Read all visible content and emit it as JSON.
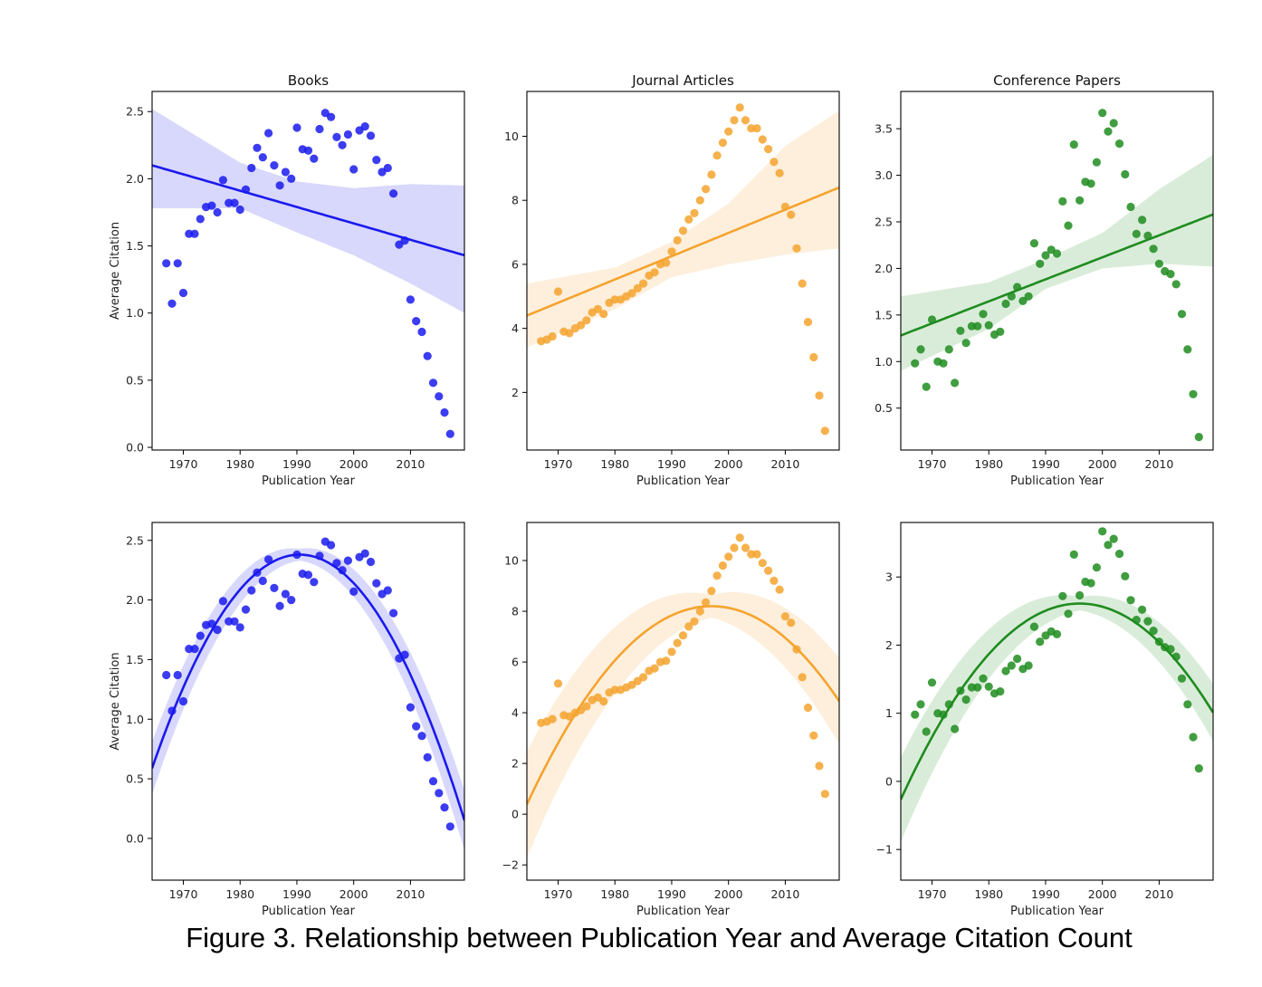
{
  "caption": "Figure 3. Relationship between Publication Year and Average Citation Count",
  "colors": {
    "books": "#1a1aee",
    "journal": "#f5a32e",
    "conference": "#1f8c1f"
  },
  "chart_data": [
    {
      "type": "scatter",
      "row": 1,
      "fit": "linear",
      "title": "Books",
      "xlabel": "Publication Year",
      "ylabel": "Average Citation",
      "xlim": [
        1964.5,
        2019.5
      ],
      "ylim": [
        -0.02,
        2.65
      ],
      "xticks": [
        1970,
        1980,
        1990,
        2000,
        2010
      ],
      "yticks": [
        0.0,
        0.5,
        1.0,
        1.5,
        2.0,
        2.5
      ],
      "ytick_labels": [
        "0.0",
        "0.5",
        "1.0",
        "1.5",
        "2.0",
        "2.5"
      ],
      "color": "#1a1aee",
      "x": [
        1967,
        1968,
        1969,
        1970,
        1971,
        1972,
        1973,
        1974,
        1975,
        1976,
        1977,
        1978,
        1979,
        1980,
        1981,
        1982,
        1983,
        1984,
        1985,
        1986,
        1987,
        1988,
        1989,
        1990,
        1991,
        1992,
        1993,
        1994,
        1995,
        1996,
        1997,
        1998,
        1999,
        2000,
        2001,
        2002,
        2003,
        2004,
        2005,
        2006,
        2007,
        2008,
        2009,
        2010,
        2011,
        2012,
        2013,
        2014,
        2015,
        2016,
        2017
      ],
      "y": [
        1.37,
        1.07,
        1.37,
        1.15,
        1.59,
        1.59,
        1.7,
        1.79,
        1.8,
        1.75,
        1.99,
        1.82,
        1.82,
        1.77,
        1.92,
        2.08,
        2.23,
        2.16,
        2.34,
        2.1,
        1.95,
        2.05,
        2.0,
        2.38,
        2.22,
        2.21,
        2.15,
        2.37,
        2.49,
        2.46,
        2.31,
        2.25,
        2.33,
        2.07,
        2.36,
        2.39,
        2.32,
        2.14,
        2.05,
        2.08,
        1.89,
        1.51,
        1.54,
        1.1,
        0.94,
        0.86,
        0.68,
        0.48,
        0.38,
        0.26,
        0.1
      ],
      "fit_line": {
        "x": [
          1964.5,
          2019.5
        ],
        "y": [
          2.1,
          1.43
        ]
      },
      "ci_band": {
        "x": [
          1964.5,
          1980,
          1990,
          2000,
          2010,
          2019.5
        ],
        "upper": [
          2.52,
          2.12,
          1.98,
          1.93,
          1.96,
          1.95
        ],
        "lower": [
          1.78,
          1.78,
          1.6,
          1.43,
          1.22,
          1.0
        ]
      }
    },
    {
      "type": "scatter",
      "row": 1,
      "fit": "linear",
      "title": "Journal Articles",
      "xlabel": "Publication Year",
      "ylabel": "",
      "xlim": [
        1964.5,
        2019.5
      ],
      "ylim": [
        0.2,
        11.4
      ],
      "xticks": [
        1970,
        1980,
        1990,
        2000,
        2010
      ],
      "yticks": [
        2,
        4,
        6,
        8,
        10
      ],
      "ytick_labels": [
        "2",
        "4",
        "6",
        "8",
        "10"
      ],
      "color": "#f5a32e",
      "x": [
        1967,
        1968,
        1969,
        1970,
        1971,
        1972,
        1973,
        1974,
        1975,
        1976,
        1977,
        1978,
        1979,
        1980,
        1981,
        1982,
        1983,
        1984,
        1985,
        1986,
        1987,
        1988,
        1989,
        1990,
        1991,
        1992,
        1993,
        1994,
        1995,
        1996,
        1997,
        1998,
        1999,
        2000,
        2001,
        2002,
        2003,
        2004,
        2005,
        2006,
        2007,
        2008,
        2009,
        2010,
        2011,
        2012,
        2013,
        2014,
        2015,
        2016,
        2017
      ],
      "y": [
        3.6,
        3.65,
        3.75,
        5.15,
        3.9,
        3.85,
        4.0,
        4.1,
        4.25,
        4.5,
        4.6,
        4.45,
        4.8,
        4.9,
        4.9,
        5.0,
        5.1,
        5.25,
        5.4,
        5.65,
        5.75,
        6.0,
        6.05,
        6.4,
        6.75,
        7.05,
        7.4,
        7.6,
        8.0,
        8.35,
        8.8,
        9.4,
        9.8,
        10.15,
        10.5,
        10.9,
        10.5,
        10.25,
        10.25,
        9.9,
        9.6,
        9.2,
        8.85,
        7.8,
        7.55,
        6.5,
        5.4,
        4.2,
        3.1,
        1.9,
        0.8
      ],
      "fit_line": {
        "x": [
          1964.5,
          2019.5
        ],
        "y": [
          4.4,
          8.4
        ]
      },
      "ci_band": {
        "x": [
          1964.5,
          1980,
          1990,
          2000,
          2010,
          2019.5
        ],
        "upper": [
          5.4,
          5.9,
          6.7,
          7.9,
          9.7,
          10.8
        ],
        "lower": [
          3.4,
          4.6,
          5.6,
          6.0,
          6.3,
          6.5
        ]
      }
    },
    {
      "type": "scatter",
      "row": 1,
      "fit": "linear",
      "title": "Conference Papers",
      "xlabel": "Publication Year",
      "ylabel": "",
      "xlim": [
        1964.5,
        2019.5
      ],
      "ylim": [
        0.05,
        3.9
      ],
      "xticks": [
        1970,
        1980,
        1990,
        2000,
        2010
      ],
      "yticks": [
        0.5,
        1.0,
        1.5,
        2.0,
        2.5,
        3.0,
        3.5
      ],
      "ytick_labels": [
        "0.5",
        "1.0",
        "1.5",
        "2.0",
        "2.5",
        "3.0",
        "3.5"
      ],
      "color": "#1f8c1f",
      "x": [
        1967,
        1968,
        1969,
        1970,
        1971,
        1972,
        1973,
        1974,
        1975,
        1976,
        1977,
        1978,
        1979,
        1980,
        1981,
        1982,
        1983,
        1984,
        1985,
        1986,
        1987,
        1988,
        1989,
        1990,
        1991,
        1992,
        1993,
        1994,
        1995,
        1996,
        1997,
        1998,
        1999,
        2000,
        2001,
        2002,
        2003,
        2004,
        2005,
        2006,
        2007,
        2008,
        2009,
        2010,
        2011,
        2012,
        2013,
        2014,
        2015,
        2016,
        2017
      ],
      "y": [
        0.98,
        1.13,
        0.73,
        1.45,
        1.0,
        0.98,
        1.13,
        0.77,
        1.33,
        1.2,
        1.38,
        1.38,
        1.51,
        1.39,
        1.29,
        1.32,
        1.62,
        1.7,
        1.8,
        1.65,
        1.7,
        2.27,
        2.05,
        2.14,
        2.2,
        2.16,
        2.72,
        2.46,
        3.33,
        2.73,
        2.93,
        2.91,
        3.14,
        3.67,
        3.47,
        3.56,
        3.34,
        3.01,
        2.66,
        2.37,
        2.52,
        2.35,
        2.21,
        2.05,
        1.97,
        1.94,
        1.83,
        1.51,
        1.13,
        0.65,
        0.19
      ],
      "fit_line": {
        "x": [
          1964.5,
          2019.5
        ],
        "y": [
          1.28,
          2.58
        ]
      },
      "ci_band": {
        "x": [
          1964.5,
          1980,
          1990,
          2000,
          2010,
          2019.5
        ],
        "upper": [
          1.7,
          1.85,
          2.1,
          2.38,
          2.85,
          3.22
        ],
        "lower": [
          0.9,
          1.35,
          1.78,
          2.0,
          2.05,
          2.02
        ]
      }
    },
    {
      "type": "scatter",
      "row": 2,
      "fit": "quadratic",
      "title": "",
      "xlabel": "Publication Year",
      "ylabel": "Average Citation",
      "xlim": [
        1964.5,
        2019.5
      ],
      "ylim": [
        -0.35,
        2.65
      ],
      "xticks": [
        1970,
        1980,
        1990,
        2000,
        2010
      ],
      "yticks": [
        0.0,
        0.5,
        1.0,
        1.5,
        2.0,
        2.5
      ],
      "ytick_labels": [
        "0.0",
        "0.5",
        "1.0",
        "1.5",
        "2.0",
        "2.5"
      ],
      "color": "#1a1aee",
      "x": [
        1967,
        1968,
        1969,
        1970,
        1971,
        1972,
        1973,
        1974,
        1975,
        1976,
        1977,
        1978,
        1979,
        1980,
        1981,
        1982,
        1983,
        1984,
        1985,
        1986,
        1987,
        1988,
        1989,
        1990,
        1991,
        1992,
        1993,
        1994,
        1995,
        1996,
        1997,
        1998,
        1999,
        2000,
        2001,
        2002,
        2003,
        2004,
        2005,
        2006,
        2007,
        2008,
        2009,
        2010,
        2011,
        2012,
        2013,
        2014,
        2015,
        2016,
        2017
      ],
      "y": [
        1.37,
        1.07,
        1.37,
        1.15,
        1.59,
        1.59,
        1.7,
        1.79,
        1.8,
        1.75,
        1.99,
        1.82,
        1.82,
        1.77,
        1.92,
        2.08,
        2.23,
        2.16,
        2.34,
        2.1,
        1.95,
        2.05,
        2.0,
        2.38,
        2.22,
        2.21,
        2.15,
        2.37,
        2.49,
        2.46,
        2.31,
        2.25,
        2.33,
        2.07,
        2.36,
        2.39,
        2.32,
        2.14,
        2.05,
        2.08,
        1.89,
        1.51,
        1.54,
        1.1,
        0.94,
        0.86,
        0.68,
        0.48,
        0.38,
        0.26,
        0.1
      ],
      "fit_curve": {
        "vertex_x": 1990.5,
        "vertex_y": 2.38,
        "curvature": -0.00265
      },
      "ci_band_width": {
        "x": [
          1964.5,
          1990.5,
          2019.5
        ],
        "w": [
          0.22,
          0.05,
          0.25
        ]
      }
    },
    {
      "type": "scatter",
      "row": 2,
      "fit": "quadratic",
      "title": "",
      "xlabel": "Publication Year",
      "ylabel": "",
      "xlim": [
        1964.5,
        2019.5
      ],
      "ylim": [
        -2.6,
        11.5
      ],
      "xticks": [
        1970,
        1980,
        1990,
        2000,
        2010
      ],
      "yticks": [
        -2,
        0,
        2,
        4,
        6,
        8,
        10
      ],
      "ytick_labels": [
        "−2",
        "0",
        "2",
        "4",
        "6",
        "8",
        "10"
      ],
      "color": "#f5a32e",
      "x": [
        1967,
        1968,
        1969,
        1970,
        1971,
        1972,
        1973,
        1974,
        1975,
        1976,
        1977,
        1978,
        1979,
        1980,
        1981,
        1982,
        1983,
        1984,
        1985,
        1986,
        1987,
        1988,
        1989,
        1990,
        1991,
        1992,
        1993,
        1994,
        1995,
        1996,
        1997,
        1998,
        1999,
        2000,
        2001,
        2002,
        2003,
        2004,
        2005,
        2006,
        2007,
        2008,
        2009,
        2010,
        2011,
        2012,
        2013,
        2014,
        2015,
        2016,
        2017
      ],
      "y": [
        3.6,
        3.65,
        3.75,
        5.15,
        3.9,
        3.85,
        4.0,
        4.1,
        4.25,
        4.5,
        4.6,
        4.45,
        4.8,
        4.9,
        4.9,
        5.0,
        5.1,
        5.25,
        5.4,
        5.65,
        5.75,
        6.0,
        6.05,
        6.4,
        6.75,
        7.05,
        7.4,
        7.6,
        8.0,
        8.35,
        8.8,
        9.4,
        9.8,
        10.15,
        10.5,
        10.9,
        10.5,
        10.25,
        10.25,
        9.9,
        9.6,
        9.2,
        8.85,
        7.8,
        7.55,
        6.5,
        5.4,
        4.2,
        3.1,
        1.9,
        0.8
      ],
      "fit_curve": {
        "vertex_x": 1997,
        "vertex_y": 8.2,
        "curvature": -0.0074
      },
      "ci_band_width": {
        "x": [
          1964.5,
          1997,
          2019.5
        ],
        "w": [
          2.1,
          0.45,
          1.7
        ]
      }
    },
    {
      "type": "scatter",
      "row": 2,
      "fit": "quadratic",
      "title": "",
      "xlabel": "Publication Year",
      "ylabel": "",
      "xlim": [
        1964.5,
        2019.5
      ],
      "ylim": [
        -1.45,
        3.8
      ],
      "xticks": [
        1970,
        1980,
        1990,
        2000,
        2010
      ],
      "yticks": [
        -1,
        0,
        1,
        2,
        3
      ],
      "ytick_labels": [
        "−1",
        "0",
        "1",
        "2",
        "3"
      ],
      "color": "#1f8c1f",
      "x": [
        1967,
        1968,
        1969,
        1970,
        1971,
        1972,
        1973,
        1974,
        1975,
        1976,
        1977,
        1978,
        1979,
        1980,
        1981,
        1982,
        1983,
        1984,
        1985,
        1986,
        1987,
        1988,
        1989,
        1990,
        1991,
        1992,
        1993,
        1994,
        1995,
        1996,
        1997,
        1998,
        1999,
        2000,
        2001,
        2002,
        2003,
        2004,
        2005,
        2006,
        2007,
        2008,
        2009,
        2010,
        2011,
        2012,
        2013,
        2014,
        2015,
        2016,
        2017
      ],
      "y": [
        0.98,
        1.13,
        0.73,
        1.45,
        1.0,
        0.98,
        1.13,
        0.77,
        1.33,
        1.2,
        1.38,
        1.38,
        1.51,
        1.39,
        1.29,
        1.32,
        1.62,
        1.7,
        1.8,
        1.65,
        1.7,
        2.27,
        2.05,
        2.14,
        2.2,
        2.16,
        2.72,
        2.46,
        3.33,
        2.73,
        2.93,
        2.91,
        3.14,
        3.67,
        3.47,
        3.56,
        3.34,
        3.01,
        2.66,
        2.37,
        2.52,
        2.35,
        2.21,
        2.05,
        1.97,
        1.94,
        1.83,
        1.51,
        1.13,
        0.65,
        0.19
      ],
      "fit_curve": {
        "vertex_x": 1996,
        "vertex_y": 2.61,
        "curvature": -0.0029
      },
      "ci_band_width": {
        "x": [
          1964.5,
          1996,
          2019.5
        ],
        "w": [
          0.62,
          0.1,
          0.42
        ]
      }
    }
  ]
}
